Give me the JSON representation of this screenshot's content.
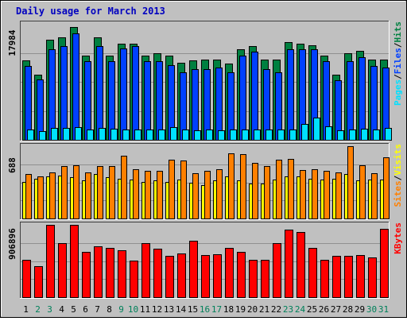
{
  "title": "Daily usage for March 2013",
  "colors": {
    "background": "#c0c0c0",
    "frame_dark": "#404040",
    "title": "#0000c0",
    "hits": "#008040",
    "files": "#0040ff",
    "pages": "#00e0ff",
    "sites": "#ff8000",
    "visits": "#ffff00",
    "kbytes": "#ff0000"
  },
  "chart_data": [
    {
      "type": "bar",
      "panel": "hits-files-pages",
      "scale_label": "17984",
      "legend": [
        {
          "name": "Pages",
          "color": "#00e0ff"
        },
        {
          "name": "/",
          "color": "#000000"
        },
        {
          "name": "Files",
          "color": "#0040ff"
        },
        {
          "name": "/",
          "color": "#000000"
        },
        {
          "name": "Hits",
          "color": "#008040"
        }
      ],
      "ylim": [
        0,
        17984
      ],
      "categories": [
        "1",
        "2",
        "3",
        "4",
        "5",
        "6",
        "7",
        "8",
        "9",
        "10",
        "11",
        "12",
        "13",
        "14",
        "15",
        "16",
        "17",
        "18",
        "19",
        "20",
        "21",
        "22",
        "23",
        "24",
        "25",
        "26",
        "27",
        "28",
        "29",
        "30",
        "31"
      ],
      "series": [
        {
          "name": "Hits",
          "values": [
            12350,
            10060,
            15510,
            15940,
            17480,
            13100,
            15940,
            13100,
            14870,
            14870,
            13100,
            13400,
            13000,
            11980,
            12350,
            12500,
            12500,
            11800,
            14000,
            14500,
            12500,
            12500,
            15200,
            14870,
            14700,
            13100,
            10130,
            13400,
            13800,
            12500,
            12500
          ]
        },
        {
          "name": "Files",
          "values": [
            11500,
            9400,
            14080,
            14500,
            16560,
            12200,
            14500,
            12200,
            14200,
            14510,
            12200,
            12200,
            11630,
            10500,
            10910,
            10910,
            11200,
            10500,
            13000,
            13640,
            11000,
            10500,
            14080,
            14080,
            14080,
            12200,
            9210,
            12200,
            12800,
            11500,
            11200
          ]
        },
        {
          "name": "Pages",
          "values": [
            1560,
            1340,
            1830,
            1830,
            2030,
            1620,
            1850,
            1680,
            1640,
            1640,
            1560,
            1580,
            2000,
            1620,
            1480,
            1560,
            1500,
            1560,
            1640,
            1640,
            1560,
            1560,
            1560,
            2480,
            3420,
            2100,
            1500,
            1540,
            1700,
            1640,
            1800
          ]
        }
      ]
    },
    {
      "type": "bar",
      "panel": "sites-visits",
      "scale_label": "688",
      "legend": [
        {
          "name": "Sites",
          "color": "#ff8000"
        },
        {
          "name": "/",
          "color": "#000000"
        },
        {
          "name": "Visits",
          "color": "#ffff00"
        }
      ],
      "ylim": [
        0,
        688
      ],
      "series": [
        {
          "name": "Visits",
          "values": [
            350,
            380,
            400,
            410,
            390,
            360,
            420,
            390,
            380,
            370,
            350,
            360,
            350,
            370,
            340,
            320,
            360,
            400,
            360,
            330,
            330,
            370,
            400,
            400,
            380,
            370,
            380,
            420,
            360,
            370,
            370
          ]
        },
        {
          "name": "Sites",
          "values": [
            420,
            400,
            440,
            500,
            510,
            440,
            500,
            500,
            600,
            470,
            450,
            450,
            560,
            550,
            430,
            450,
            470,
            620,
            610,
            530,
            500,
            560,
            570,
            460,
            470,
            450,
            440,
            688,
            510,
            430,
            580
          ]
        }
      ]
    },
    {
      "type": "bar",
      "panel": "kbytes",
      "scale_label": "906896",
      "legend": [
        {
          "name": "KBytes",
          "color": "#ff0000"
        }
      ],
      "ylim": [
        0,
        906896
      ],
      "series": [
        {
          "name": "KBytes",
          "values": [
            465000,
            387000,
            906896,
            681000,
            906896,
            566000,
            638000,
            619000,
            584000,
            456000,
            681000,
            604000,
            521000,
            546000,
            709000,
            529000,
            538000,
            618000,
            566000,
            469000,
            469000,
            681000,
            844000,
            819000,
            619000,
            469000,
            521000,
            521000,
            529000,
            499000,
            858000
          ]
        }
      ]
    }
  ],
  "x_labels": [
    {
      "label": "1",
      "weekend": false
    },
    {
      "label": "2",
      "weekend": true
    },
    {
      "label": "3",
      "weekend": true
    },
    {
      "label": "4",
      "weekend": false
    },
    {
      "label": "5",
      "weekend": false
    },
    {
      "label": "6",
      "weekend": false
    },
    {
      "label": "7",
      "weekend": false
    },
    {
      "label": "8",
      "weekend": false
    },
    {
      "label": "9",
      "weekend": true
    },
    {
      "label": "10",
      "weekend": true
    },
    {
      "label": "11",
      "weekend": false
    },
    {
      "label": "12",
      "weekend": false
    },
    {
      "label": "13",
      "weekend": false
    },
    {
      "label": "14",
      "weekend": false
    },
    {
      "label": "15",
      "weekend": false
    },
    {
      "label": "16",
      "weekend": true
    },
    {
      "label": "17",
      "weekend": true
    },
    {
      "label": "18",
      "weekend": false
    },
    {
      "label": "19",
      "weekend": false
    },
    {
      "label": "20",
      "weekend": false
    },
    {
      "label": "21",
      "weekend": false
    },
    {
      "label": "22",
      "weekend": false
    },
    {
      "label": "23",
      "weekend": true
    },
    {
      "label": "24",
      "weekend": true
    },
    {
      "label": "25",
      "weekend": false
    },
    {
      "label": "26",
      "weekend": false
    },
    {
      "label": "27",
      "weekend": false
    },
    {
      "label": "28",
      "weekend": false
    },
    {
      "label": "29",
      "weekend": false
    },
    {
      "label": "30",
      "weekend": true
    },
    {
      "label": "31",
      "weekend": true
    }
  ]
}
